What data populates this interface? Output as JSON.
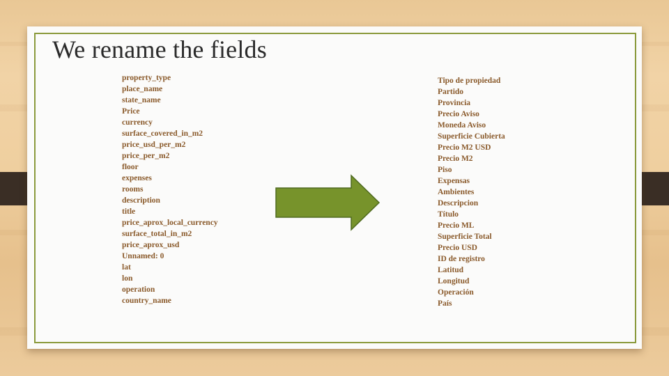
{
  "slide": {
    "title": "We rename the fields",
    "original_fields": [
      "property_type",
      "place_name",
      "state_name",
      "Price",
      "currency",
      "surface_covered_in_m2",
      "price_usd_per_m2",
      "price_per_m2",
      "floor",
      "expenses",
      "rooms",
      "description",
      "title",
      "price_aprox_local_currency",
      "surface_total_in_m2",
      "price_aprox_usd",
      "Unnamed: 0",
      "lat",
      "lon",
      "operation",
      "country_name"
    ],
    "renamed_fields": [
      "Tipo de propiedad",
      "Partido",
      "Provincia",
      "Precio Aviso",
      "Moneda Aviso",
      "Superficie Cubierta",
      "Precio M2 USD",
      "Precio M2",
      "Piso",
      "Expensas",
      "Ambientes",
      "Descripcion",
      "Título",
      "Precio ML",
      "Superficie Total",
      "Precio USD",
      "ID de registro",
      "Latitud",
      "Longitud",
      "Operación",
      "País"
    ]
  },
  "colors": {
    "text_fields": "#8a5a2b",
    "frame": "#8a9a3b",
    "arrow_fill": "#77932b",
    "arrow_stroke": "#4f6a1f",
    "title": "#2b2b2b",
    "tabs": "#3a2e25"
  },
  "icons": {
    "arrow": "right-arrow-icon"
  }
}
